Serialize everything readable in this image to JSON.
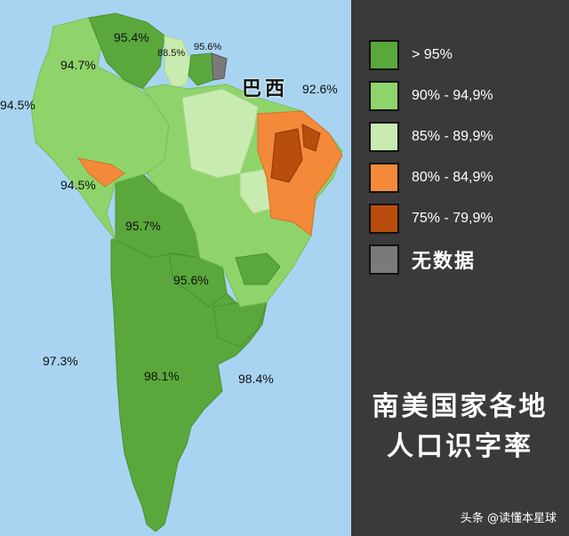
{
  "colors": {
    "sea": "#a8d4f2",
    "over_95": "#5aa83c",
    "r90_949": "#8fd46a",
    "r85_899": "#c8ebb0",
    "r80_849": "#f5893a",
    "r75_799": "#b84d0e",
    "no_data": "#7a7a7a",
    "panel_bg": "#3a3a3a"
  },
  "map": {
    "country_label": "巴西",
    "values": {
      "venezuela": "95.4%",
      "guyana": "88.5%",
      "suriname": "95.6%",
      "colombia": "94.7%",
      "ecuador": "94.5%",
      "peru": "94.5%",
      "brazil": "92.6%",
      "bolivia": "95.7%",
      "paraguay": "95.6%",
      "chile": "97.3%",
      "argentina": "98.1%",
      "uruguay": "98.4%"
    }
  },
  "legend": {
    "items": [
      {
        "label": "> 95%",
        "color": "#5aa83c"
      },
      {
        "label": "90% - 94,9%",
        "color": "#8fd46a"
      },
      {
        "label": "85% - 89,9%",
        "color": "#c8ebb0"
      },
      {
        "label": "80% - 84,9%",
        "color": "#f5893a"
      },
      {
        "label": "75% - 79,9%",
        "color": "#b84d0e"
      },
      {
        "label": "无数据",
        "color": "#7a7a7a"
      }
    ]
  },
  "title": {
    "line1": "南美国家各地",
    "line2": "人口识字率"
  },
  "watermark": "头条 @读懂本星球"
}
